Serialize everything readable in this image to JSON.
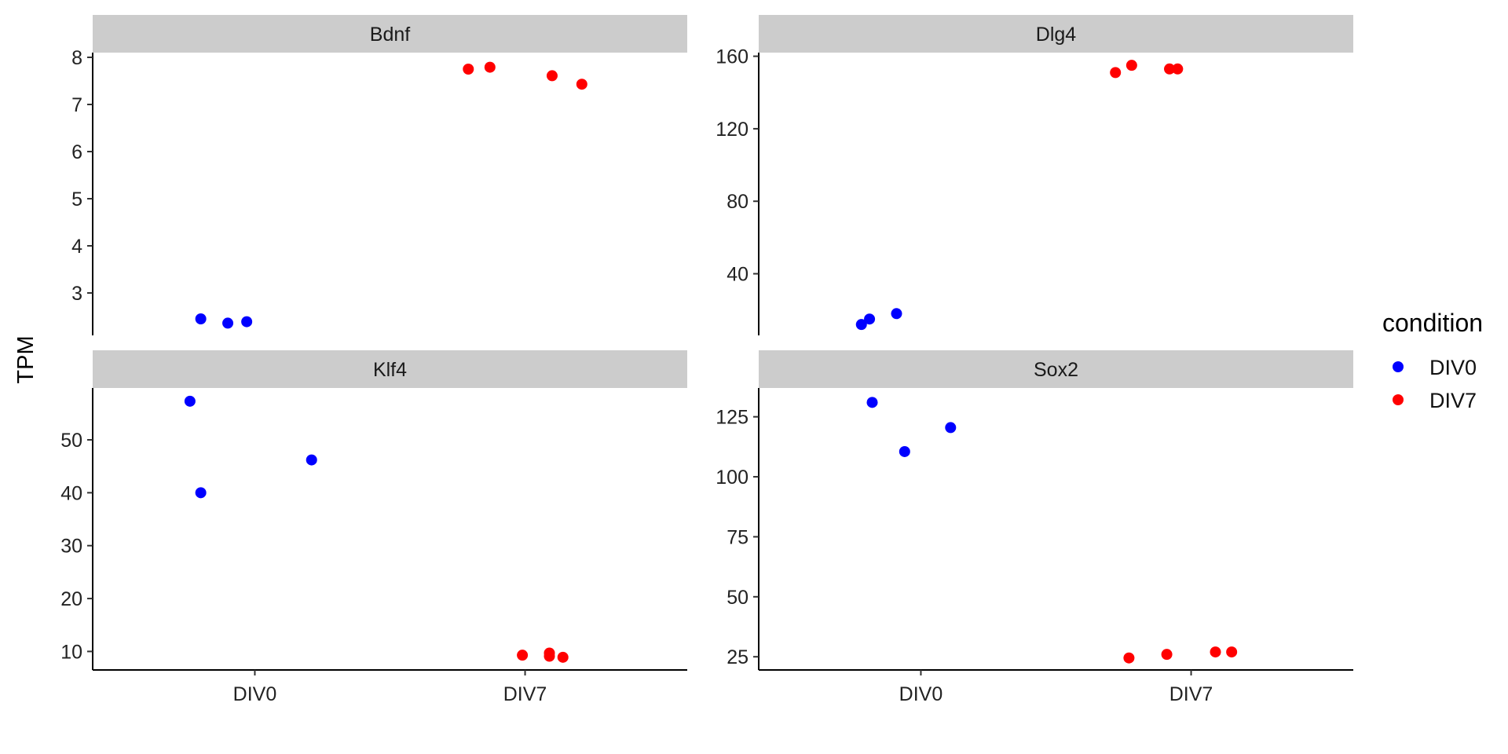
{
  "chart_data": {
    "type": "scatter",
    "ylabel": "TPM",
    "legend": {
      "title": "condition",
      "position": "right",
      "entries": [
        {
          "label": "DIV0",
          "color": "#0000ff"
        },
        {
          "label": "DIV7",
          "color": "#ff0000"
        }
      ]
    },
    "categories": [
      "DIV0",
      "DIV7"
    ],
    "panels": [
      {
        "title": "Bdnf",
        "ylim": [
          2.1,
          8.1
        ],
        "yticks": [
          3,
          4,
          5,
          6,
          7,
          8
        ],
        "show_x_axis": false,
        "points": [
          {
            "x": 0.8,
            "y": 2.45,
            "condition": "DIV0"
          },
          {
            "x": 0.9,
            "y": 2.36,
            "condition": "DIV0"
          },
          {
            "x": 0.97,
            "y": 2.39,
            "condition": "DIV0"
          },
          {
            "x": 1.79,
            "y": 7.75,
            "condition": "DIV7"
          },
          {
            "x": 1.87,
            "y": 7.79,
            "condition": "DIV7"
          },
          {
            "x": 2.1,
            "y": 7.61,
            "condition": "DIV7"
          },
          {
            "x": 2.21,
            "y": 7.43,
            "condition": "DIV7"
          }
        ]
      },
      {
        "title": "Dlg4",
        "ylim": [
          6,
          162
        ],
        "yticks": [
          40,
          80,
          120,
          160
        ],
        "show_x_axis": false,
        "points": [
          {
            "x": 0.78,
            "y": 12,
            "condition": "DIV0"
          },
          {
            "x": 0.81,
            "y": 15,
            "condition": "DIV0"
          },
          {
            "x": 0.91,
            "y": 18,
            "condition": "DIV0"
          },
          {
            "x": 1.72,
            "y": 151,
            "condition": "DIV7"
          },
          {
            "x": 1.78,
            "y": 155,
            "condition": "DIV7"
          },
          {
            "x": 1.92,
            "y": 153,
            "condition": "DIV7"
          },
          {
            "x": 1.95,
            "y": 153,
            "condition": "DIV7"
          }
        ]
      },
      {
        "title": "Klf4",
        "ylim": [
          6.5,
          59.8
        ],
        "yticks": [
          10,
          20,
          30,
          40,
          50
        ],
        "show_x_axis": true,
        "points": [
          {
            "x": 0.76,
            "y": 57.3,
            "condition": "DIV0"
          },
          {
            "x": 0.8,
            "y": 40.0,
            "condition": "DIV0"
          },
          {
            "x": 1.21,
            "y": 46.2,
            "condition": "DIV0"
          },
          {
            "x": 1.99,
            "y": 9.3,
            "condition": "DIV7"
          },
          {
            "x": 2.09,
            "y": 9.1,
            "condition": "DIV7"
          },
          {
            "x": 2.09,
            "y": 9.7,
            "condition": "DIV7"
          },
          {
            "x": 2.14,
            "y": 8.9,
            "condition": "DIV7"
          }
        ]
      },
      {
        "title": "Sox2",
        "ylim": [
          19.5,
          137
        ],
        "yticks": [
          25,
          50,
          75,
          100,
          125
        ],
        "show_x_axis": true,
        "points": [
          {
            "x": 0.82,
            "y": 131,
            "condition": "DIV0"
          },
          {
            "x": 0.94,
            "y": 110.5,
            "condition": "DIV0"
          },
          {
            "x": 1.11,
            "y": 120.5,
            "condition": "DIV0"
          },
          {
            "x": 1.77,
            "y": 24.5,
            "condition": "DIV7"
          },
          {
            "x": 1.91,
            "y": 26,
            "condition": "DIV7"
          },
          {
            "x": 2.09,
            "y": 27,
            "condition": "DIV7"
          },
          {
            "x": 2.15,
            "y": 27,
            "condition": "DIV7"
          }
        ]
      }
    ]
  }
}
